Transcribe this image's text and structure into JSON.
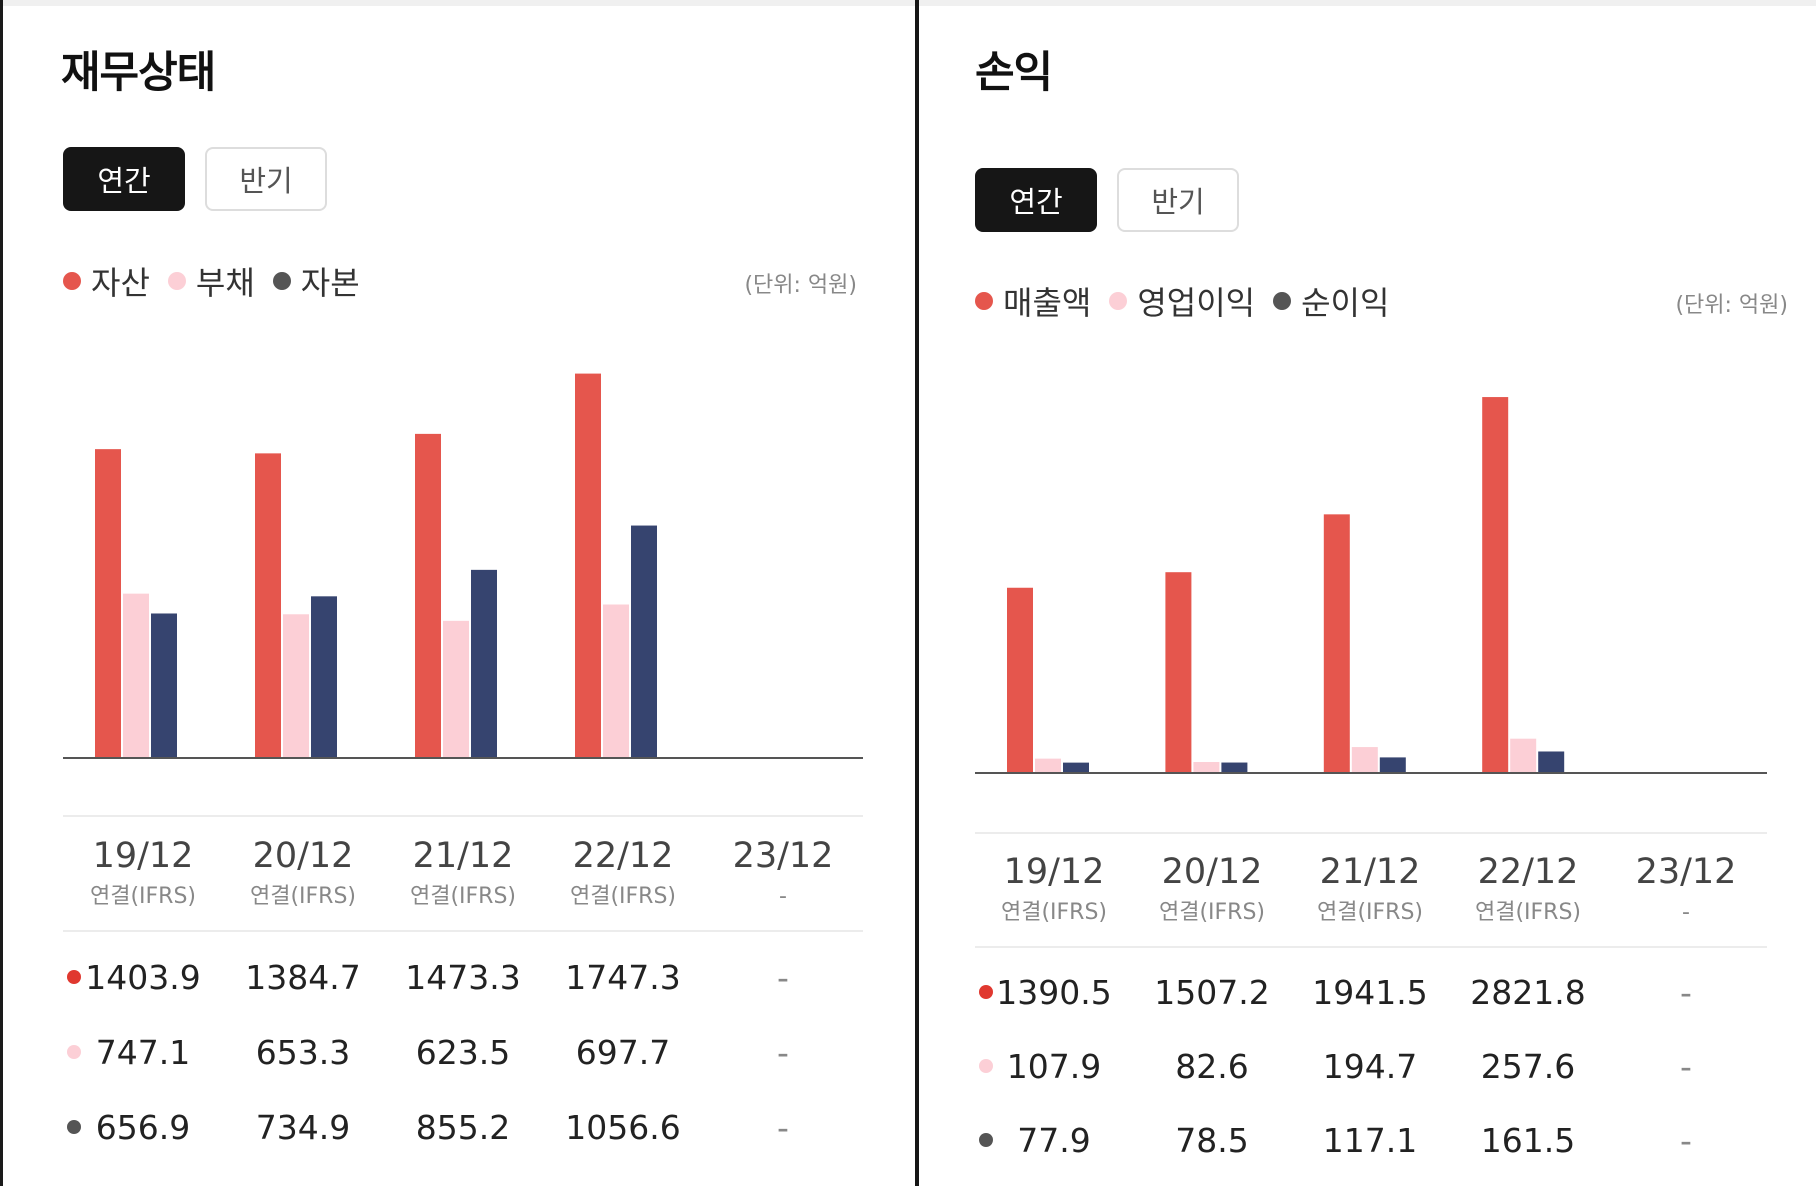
{
  "colors": {
    "series1": "#e5564d",
    "series2": "#fccfd6",
    "series3": "#36446f",
    "dot3": "#555555"
  },
  "panels": [
    {
      "title": "재무상태",
      "tabs": [
        "연간",
        "반기"
      ],
      "active_tab": "연간",
      "unit": "(단위: 억원)",
      "periods": [
        "19/12",
        "20/12",
        "21/12",
        "22/12",
        "23/12"
      ],
      "basis": [
        "연결(IFRS)",
        "연결(IFRS)",
        "연결(IFRS)",
        "연결(IFRS)",
        "-"
      ],
      "chart_data": {
        "type": "bar",
        "categories": [
          "19/12",
          "20/12",
          "21/12",
          "22/12",
          "23/12"
        ],
        "series": [
          {
            "name": "자산",
            "values": [
              1403.9,
              1384.7,
              1473.3,
              1747.3,
              null
            ]
          },
          {
            "name": "부채",
            "values": [
              747.1,
              653.3,
              623.5,
              697.7,
              null
            ]
          },
          {
            "name": "자본",
            "values": [
              656.9,
              734.9,
              855.2,
              1056.6,
              null
            ]
          }
        ],
        "display": [
          [
            "1403.9",
            "1384.7",
            "1473.3",
            "1747.3",
            "-"
          ],
          [
            "747.1",
            "653.3",
            "623.5",
            "697.7",
            "-"
          ],
          [
            "656.9",
            "734.9",
            "855.2",
            "1056.6",
            "-"
          ]
        ]
      }
    },
    {
      "title": "손익",
      "tabs": [
        "연간",
        "반기"
      ],
      "active_tab": "연간",
      "unit": "(단위: 억원)",
      "periods": [
        "19/12",
        "20/12",
        "21/12",
        "22/12",
        "23/12"
      ],
      "basis": [
        "연결(IFRS)",
        "연결(IFRS)",
        "연결(IFRS)",
        "연결(IFRS)",
        "-"
      ],
      "chart_data": {
        "type": "bar",
        "categories": [
          "19/12",
          "20/12",
          "21/12",
          "22/12",
          "23/12"
        ],
        "series": [
          {
            "name": "매출액",
            "values": [
              1390.5,
              1507.2,
              1941.5,
              2821.8,
              null
            ]
          },
          {
            "name": "영업이익",
            "values": [
              107.9,
              82.6,
              194.7,
              257.6,
              null
            ]
          },
          {
            "name": "순이익",
            "values": [
              77.9,
              78.5,
              117.1,
              161.5,
              null
            ]
          }
        ],
        "display": [
          [
            "1390.5",
            "1507.2",
            "1941.5",
            "2821.8",
            "-"
          ],
          [
            "107.9",
            "82.6",
            "194.7",
            "257.6",
            "-"
          ],
          [
            "77.9",
            "78.5",
            "117.1",
            "161.5",
            "-"
          ]
        ]
      }
    }
  ]
}
